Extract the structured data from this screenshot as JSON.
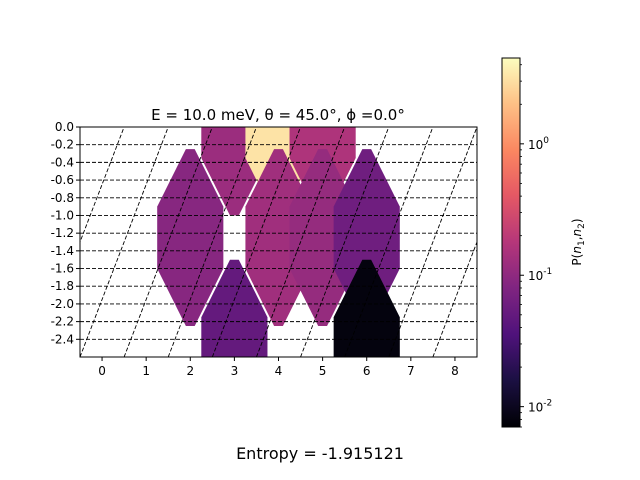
{
  "title_text": "E = 10.0 meV, θ = 45.0°, ϕ =0.0°",
  "footer": {
    "entropy_label": "Entropy = -1.915121"
  },
  "colorbar": {
    "label": "P(n1,n2)",
    "tick_labels": [
      "10^0",
      "10^-1",
      "10^-2"
    ]
  },
  "chart_data": {
    "type": "heatmap",
    "xlim": [
      -0.5,
      8.5
    ],
    "ylim": [
      -2.6,
      0.0
    ],
    "x_ticks": [
      "0",
      "1",
      "2",
      "3",
      "4",
      "5",
      "6",
      "7",
      "8"
    ],
    "y_ticks": [
      "0.0",
      "-0.2",
      "-0.4",
      "-0.6",
      "-0.8",
      "-1.0",
      "-1.2",
      "-1.4",
      "-1.6",
      "-1.8",
      "-2.0",
      "-2.2",
      "-2.4"
    ],
    "grid": "dashed diagonal lines",
    "colormap": "magma",
    "color_scale": "log",
    "color_range": [
      0.007,
      4.5
    ],
    "cells": [
      {
        "x": 3,
        "y": 0.0,
        "p": 0.12
      },
      {
        "x": 4,
        "y": 0.0,
        "p": 3.2
      },
      {
        "x": 5,
        "y": 0.0,
        "p": 0.16
      },
      {
        "x": 2,
        "y": -1.25,
        "p": 0.09
      },
      {
        "x": 4,
        "y": -1.25,
        "p": 0.13
      },
      {
        "x": 5,
        "y": -1.25,
        "p": 0.11
      },
      {
        "x": 6,
        "y": -1.25,
        "p": 0.06
      },
      {
        "x": 3,
        "y": -2.5,
        "p": 0.05
      },
      {
        "x": 6,
        "y": -2.5,
        "p": 0.008
      }
    ]
  }
}
